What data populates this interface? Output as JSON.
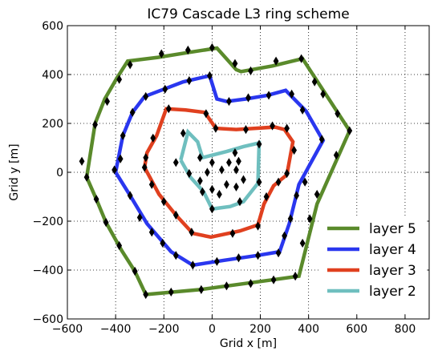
{
  "chart_data": {
    "type": "line",
    "title": "IC79 Cascade L3 ring scheme",
    "xlabel": "Grid x [m]",
    "ylabel": "Grid y [m]",
    "xlim": [
      -600,
      900
    ],
    "ylim": [
      -600,
      600
    ],
    "xticks": [
      -600,
      -400,
      -200,
      0,
      200,
      400,
      600,
      800
    ],
    "yticks": [
      -600,
      -400,
      -200,
      0,
      200,
      400,
      600
    ],
    "xtick_labels": [
      "−600",
      "−400",
      "−200",
      "0",
      "200",
      "400",
      "600",
      "800"
    ],
    "ytick_labels": [
      "−600",
      "−400",
      "−200",
      "0",
      "200",
      "400",
      "600"
    ],
    "grid": true,
    "grid_style": "dotted",
    "legend_position": "lower-right",
    "series": [
      {
        "name": "layer 5",
        "color": "#5a8a2b",
        "points": [
          [
            -520,
            -20
          ],
          [
            -480,
            -110
          ],
          [
            -440,
            -205
          ],
          [
            -375,
            -320
          ],
          [
            -320,
            -405
          ],
          [
            -275,
            -500
          ],
          [
            -50,
            -480
          ],
          [
            250,
            -440
          ],
          [
            360,
            -425
          ],
          [
            435,
            -130
          ],
          [
            570,
            170
          ],
          [
            375,
            465
          ],
          [
            250,
            435
          ],
          [
            120,
            412
          ],
          [
            100,
            420
          ],
          [
            20,
            508
          ],
          [
            -100,
            490
          ],
          [
            -225,
            470
          ],
          [
            -350,
            455
          ],
          [
            -395,
            385
          ],
          [
            -445,
            300
          ],
          [
            -485,
            200
          ]
        ],
        "markers": [
          [
            -520,
            -20
          ],
          [
            -480,
            -110
          ],
          [
            -440,
            -205
          ],
          [
            -385,
            -300
          ],
          [
            -320,
            -405
          ],
          [
            -275,
            -500
          ],
          [
            -170,
            -490
          ],
          [
            -45,
            -480
          ],
          [
            60,
            -465
          ],
          [
            160,
            -455
          ],
          [
            255,
            -440
          ],
          [
            345,
            -425
          ],
          [
            375,
            -290
          ],
          [
            405,
            -190
          ],
          [
            435,
            -90
          ],
          [
            515,
            70
          ],
          [
            570,
            170
          ],
          [
            520,
            240
          ],
          [
            460,
            320
          ],
          [
            425,
            370
          ],
          [
            370,
            465
          ],
          [
            265,
            455
          ],
          [
            160,
            415
          ],
          [
            95,
            445
          ],
          [
            0,
            510
          ],
          [
            -100,
            500
          ],
          [
            -210,
            485
          ],
          [
            -340,
            440
          ],
          [
            -385,
            380
          ],
          [
            -435,
            290
          ],
          [
            -485,
            195
          ],
          [
            -540,
            45
          ]
        ],
        "marker_color": "#000000"
      },
      {
        "name": "layer 4",
        "color": "#2a37ef",
        "points": [
          [
            -400,
            0
          ],
          [
            -340,
            -95
          ],
          [
            -270,
            -210
          ],
          [
            -170,
            -325
          ],
          [
            -80,
            -380
          ],
          [
            50,
            -360
          ],
          [
            190,
            -340
          ],
          [
            280,
            -325
          ],
          [
            320,
            -210
          ],
          [
            360,
            -50
          ],
          [
            460,
            130
          ],
          [
            390,
            250
          ],
          [
            305,
            335
          ],
          [
            230,
            315
          ],
          [
            140,
            300
          ],
          [
            60,
            290
          ],
          [
            20,
            300
          ],
          [
            -10,
            395
          ],
          [
            -120,
            370
          ],
          [
            -200,
            340
          ],
          [
            -280,
            310
          ],
          [
            -330,
            245
          ],
          [
            -370,
            150
          ]
        ],
        "markers": [
          [
            -380,
            55
          ],
          [
            -340,
            -95
          ],
          [
            -300,
            -185
          ],
          [
            -250,
            -245
          ],
          [
            -205,
            -290
          ],
          [
            -150,
            -340
          ],
          [
            -80,
            -380
          ],
          [
            20,
            -365
          ],
          [
            110,
            -350
          ],
          [
            190,
            -340
          ],
          [
            275,
            -330
          ],
          [
            300,
            -260
          ],
          [
            325,
            -190
          ],
          [
            350,
            -95
          ],
          [
            385,
            -40
          ],
          [
            455,
            135
          ],
          [
            375,
            255
          ],
          [
            330,
            320
          ],
          [
            235,
            315
          ],
          [
            150,
            305
          ],
          [
            70,
            290
          ],
          [
            -10,
            395
          ],
          [
            -95,
            375
          ],
          [
            -195,
            340
          ],
          [
            -275,
            310
          ],
          [
            -330,
            245
          ],
          [
            -370,
            150
          ],
          [
            -405,
            10
          ]
        ],
        "marker_color": "#000000"
      },
      {
        "name": "layer 3",
        "color": "#e0401f",
        "points": [
          [
            -280,
            20
          ],
          [
            -220,
            -90
          ],
          [
            -150,
            -175
          ],
          [
            -80,
            -250
          ],
          [
            -5,
            -265
          ],
          [
            115,
            -240
          ],
          [
            190,
            -215
          ],
          [
            215,
            -130
          ],
          [
            255,
            -55
          ],
          [
            310,
            -10
          ],
          [
            335,
            125
          ],
          [
            300,
            175
          ],
          [
            260,
            185
          ],
          [
            180,
            180
          ],
          [
            100,
            175
          ],
          [
            15,
            180
          ],
          [
            -30,
            245
          ],
          [
            -110,
            255
          ],
          [
            -190,
            260
          ],
          [
            -230,
            150
          ],
          [
            -270,
            80
          ]
        ],
        "markers": [
          [
            -280,
            20
          ],
          [
            -250,
            -50
          ],
          [
            -200,
            -120
          ],
          [
            -150,
            -175
          ],
          [
            -85,
            -245
          ],
          [
            85,
            -250
          ],
          [
            190,
            -220
          ],
          [
            225,
            -100
          ],
          [
            275,
            -40
          ],
          [
            310,
            -5
          ],
          [
            340,
            90
          ],
          [
            310,
            180
          ],
          [
            250,
            190
          ],
          [
            140,
            175
          ],
          [
            15,
            180
          ],
          [
            -25,
            240
          ],
          [
            -180,
            260
          ],
          [
            -245,
            140
          ],
          [
            -275,
            60
          ]
        ],
        "marker_color": "#000000"
      },
      {
        "name": "layer 2",
        "color": "#6fbfbf",
        "points": [
          [
            -130,
            50
          ],
          [
            -90,
            -20
          ],
          [
            -35,
            -80
          ],
          [
            0,
            -150
          ],
          [
            75,
            -140
          ],
          [
            130,
            -120
          ],
          [
            190,
            -45
          ],
          [
            195,
            120
          ],
          [
            130,
            105
          ],
          [
            60,
            85
          ],
          [
            -40,
            60
          ],
          [
            -60,
            125
          ],
          [
            -100,
            165
          ]
        ],
        "markers": [
          [
            -150,
            40
          ],
          [
            -95,
            -5
          ],
          [
            -40,
            -80
          ],
          [
            0,
            -150
          ],
          [
            115,
            -120
          ],
          [
            195,
            -40
          ],
          [
            195,
            115
          ],
          [
            95,
            80
          ],
          [
            -50,
            60
          ],
          [
            -120,
            160
          ]
        ],
        "marker_color": "#000000"
      }
    ],
    "interior_points": [
      [
        0,
        40
      ],
      [
        70,
        40
      ],
      [
        110,
        45
      ],
      [
        -20,
        0
      ],
      [
        40,
        10
      ],
      [
        100,
        10
      ],
      [
        0,
        -70
      ],
      [
        60,
        -50
      ],
      [
        -50,
        -35
      ],
      [
        130,
        -30
      ],
      [
        30,
        -90
      ],
      [
        100,
        -60
      ]
    ]
  }
}
